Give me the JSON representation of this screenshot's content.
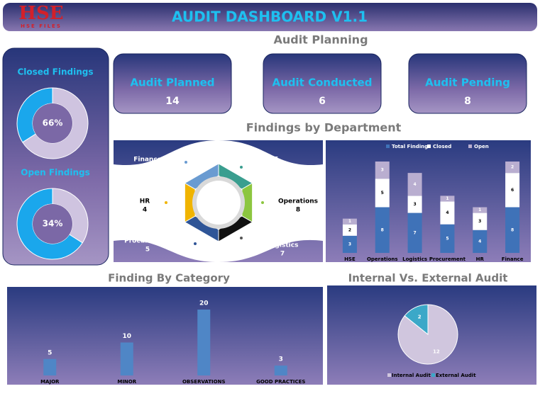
{
  "header": {
    "logo": "HSE",
    "logo_sub": "HSE FILES",
    "title": "AUDIT DASHBOARD V1.1"
  },
  "sections": {
    "planning": "Audit Planning",
    "departments": "Findings by Department"
  },
  "kpis": [
    {
      "label": "Audit Planned",
      "value": 14
    },
    {
      "label": "Audit Conducted",
      "value": 6
    },
    {
      "label": "Audit Pending",
      "value": 8
    }
  ],
  "chart_data": [
    {
      "type": "donut",
      "title": "Closed Findings",
      "values": [
        66,
        34
      ],
      "value_labels": [
        "66%",
        null
      ],
      "colors": [
        "#cfc4e0",
        "#1aa7ec"
      ]
    },
    {
      "type": "donut",
      "title": "Open Findings",
      "values": [
        34,
        66
      ],
      "value_labels": [
        "34%",
        null
      ],
      "colors": [
        "#cfc4e0",
        "#1aa7ec"
      ]
    },
    {
      "type": "hexagon",
      "categories": [
        "HSE",
        "Operations",
        "Logistics",
        "Procurement",
        "HR",
        "Finance"
      ],
      "values": [
        3,
        8,
        7,
        5,
        4,
        8
      ],
      "colors": [
        "#3a9e8f",
        "#8cc63f",
        "#111111",
        "#2f5597",
        "#f0b400",
        "#6a9bd1"
      ]
    },
    {
      "type": "stacked-bar",
      "categories": [
        "HSE",
        "Operations",
        "Logistics",
        "Procurement",
        "HR",
        "Finance"
      ],
      "series": [
        {
          "name": "Total Findings",
          "color": "#3f72b8",
          "values": [
            3,
            8,
            7,
            5,
            4,
            8
          ]
        },
        {
          "name": "Closed",
          "color": "#ffffff",
          "values": [
            2,
            5,
            3,
            4,
            3,
            6
          ]
        },
        {
          "name": "Open",
          "color": "#b9aed0",
          "values": [
            1,
            3,
            4,
            1,
            1,
            2
          ]
        }
      ]
    },
    {
      "type": "bar",
      "title": "Finding By Category",
      "categories": [
        "MAJOR",
        "MINOR",
        "OBSERVATIONS",
        "GOOD PRACTICES"
      ],
      "values": [
        5,
        10,
        20,
        3
      ],
      "color": "#4f86c6"
    },
    {
      "type": "pie",
      "title": "Internal Vs. External Audit",
      "categories": [
        "Internal Audit",
        "External Audit"
      ],
      "values": [
        12,
        2
      ],
      "colors": [
        "#d0c6de",
        "#3ba8c8"
      ]
    }
  ]
}
